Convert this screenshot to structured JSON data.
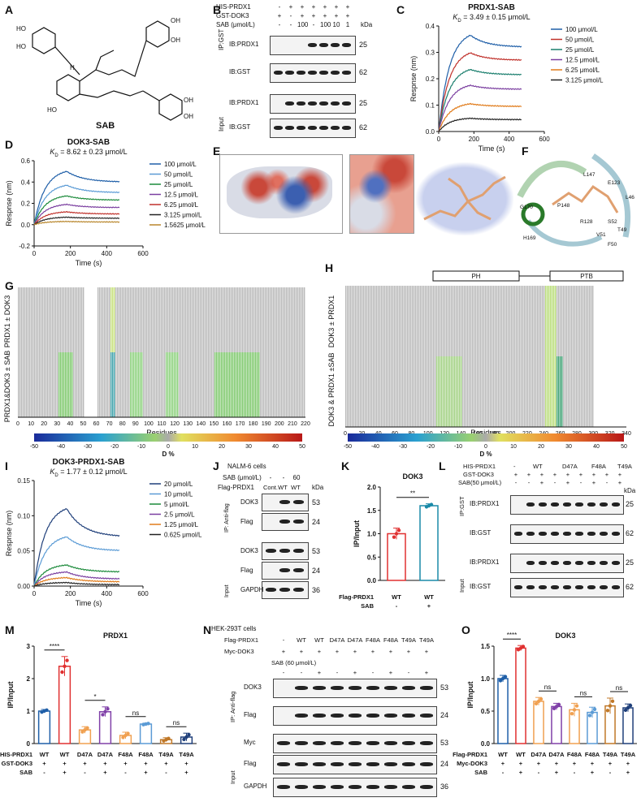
{
  "labels": {
    "A": "A",
    "B": "B",
    "C": "C",
    "D": "D",
    "E": "E",
    "F": "F",
    "G": "G",
    "H": "H",
    "I": "I",
    "J": "J",
    "K": "K",
    "L": "L",
    "M": "M",
    "N": "N",
    "O": "O"
  },
  "panelA": {
    "compound": "SAB",
    "h": "H"
  },
  "panelB": {
    "rows": [
      "HIS-PRDX1",
      "GST-DOK3",
      "SAB (μmol/L)"
    ],
    "signs": [
      [
        "-",
        "+",
        "+",
        "+",
        "+",
        "+",
        "+"
      ],
      [
        "+",
        "-",
        "+",
        "+",
        "+",
        "+",
        "+"
      ],
      [
        "-",
        "-",
        "100",
        "-",
        "100",
        "10",
        "1"
      ]
    ],
    "kda_label": "kDa",
    "blots": [
      {
        "name": "IB:PRDX1",
        "kda": "25"
      },
      {
        "name": "IB:GST",
        "kda": "62"
      },
      {
        "name": "IB:PRDX1",
        "kda": "25"
      },
      {
        "name": "IB:GST",
        "kda": "62"
      }
    ],
    "groups": [
      "IP:GST",
      "Input"
    ]
  },
  "chart_data": [
    {
      "id": "C",
      "type": "line",
      "title": "PRDX1-SAB",
      "kd": "K_D = 3.49 ± 0.15 μmol/L",
      "kd_sym": "K",
      "kd_sub": "D",
      "kd_rest": " = 3.49 ± 0.15 μmol/L",
      "xlabel": "Time (s)",
      "ylabel": "Respnse (nm)",
      "xlim": [
        0,
        600
      ],
      "ylim": [
        0,
        0.4
      ],
      "xticks": [
        "0",
        "200",
        "400",
        "600"
      ],
      "yticks": [
        "0.0",
        "0.1",
        "0.2",
        "0.3",
        "0.4"
      ],
      "series": [
        {
          "name": "100 μmol/L",
          "color": "#1f5fa8",
          "plateau": 0.365,
          "end": 0.32
        },
        {
          "name": "50 μmol/L",
          "color": "#c0312b",
          "plateau": 0.298,
          "end": 0.27
        },
        {
          "name": "25 μmol/L",
          "color": "#1b7f6e",
          "plateau": 0.235,
          "end": 0.215
        },
        {
          "name": "12.5 μmol/L",
          "color": "#7b3fa0",
          "plateau": 0.175,
          "end": 0.16
        },
        {
          "name": "6.25 μmol/L",
          "color": "#e07b1a",
          "plateau": 0.105,
          "end": 0.095
        },
        {
          "name": "3.125 μmol/L",
          "color": "#222222",
          "plateau": 0.05,
          "end": 0.045
        }
      ]
    },
    {
      "id": "D",
      "type": "line",
      "title": "DOK3-SAB",
      "kd": "K_D = 8.62 ± 0.23 μmol/L",
      "kd_sym": "K",
      "kd_sub": "D",
      "kd_rest": " = 8.62 ± 0.23 μmol/L",
      "xlabel": "Time (s)",
      "ylabel": "Respnse (nm)",
      "xlim": [
        0,
        600
      ],
      "ylim": [
        -0.2,
        0.6
      ],
      "xticks": [
        "0",
        "200",
        "400",
        "600"
      ],
      "yticks": [
        "-0.2",
        "0.0",
        "0.2",
        "0.4",
        "0.6"
      ],
      "series": [
        {
          "name": "100 μmol/L",
          "color": "#1f5fa8",
          "plateau": 0.5,
          "end": 0.4
        },
        {
          "name": "50 μmol/L",
          "color": "#5b9bd5",
          "plateau": 0.37,
          "end": 0.3
        },
        {
          "name": "25 μmol/L",
          "color": "#1b8a3a",
          "plateau": 0.27,
          "end": 0.23
        },
        {
          "name": "12.5 μmol/L",
          "color": "#7b3fa0",
          "plateau": 0.19,
          "end": 0.16
        },
        {
          "name": "6.25 μmol/L",
          "color": "#c0312b",
          "plateau": 0.12,
          "end": 0.1
        },
        {
          "name": "3.125 μmol/L",
          "color": "#222222",
          "plateau": 0.07,
          "end": 0.06
        },
        {
          "name": "1.5625 μmol/L",
          "color": "#b8862b",
          "plateau": 0.03,
          "end": 0.025
        }
      ]
    },
    {
      "id": "I",
      "type": "line",
      "title": "DOK3-PRDX1-SAB",
      "kd": "K_D = 1.77 ± 0.12 μmol/L",
      "kd_sym": "K",
      "kd_sub": "D",
      "kd_rest": " = 1.77 ± 0.12 μmol/L",
      "xlabel": "Time (s)",
      "ylabel": "Respnse (nm)",
      "xlim": [
        0,
        600
      ],
      "ylim": [
        0,
        0.15
      ],
      "xticks": [
        "0",
        "200",
        "400",
        "600"
      ],
      "yticks": [
        "0.00",
        "0.05",
        "0.10",
        "0.15"
      ],
      "series": [
        {
          "name": "20 μmol/L",
          "color": "#1f3f7a",
          "plateau": 0.11,
          "end": 0.07
        },
        {
          "name": "10 μmol/L",
          "color": "#5b9bd5",
          "plateau": 0.07,
          "end": 0.05
        },
        {
          "name": "5 μmol/L",
          "color": "#1b8a3a",
          "plateau": 0.03,
          "end": 0.02
        },
        {
          "name": "2.5 μmol/L",
          "color": "#7b3fa0",
          "plateau": 0.02,
          "end": 0.01
        },
        {
          "name": "1.25 μmol/L",
          "color": "#e07b1a",
          "plateau": 0.012,
          "end": 0.006
        },
        {
          "name": "0.625 μmol/L",
          "color": "#222222",
          "plateau": 0.005,
          "end": 0.002
        }
      ]
    },
    {
      "id": "K",
      "type": "bar",
      "title": "DOK3",
      "ylabel": "IP/Input",
      "ylim": [
        0,
        2.0
      ],
      "yticks": [
        "0.0",
        "0.5",
        "1.0",
        "1.5",
        "2.0"
      ],
      "categories": [
        "WT",
        "WT"
      ],
      "values": [
        1.0,
        1.6
      ],
      "errors": [
        0.12,
        0.04
      ],
      "colors": [
        "#e03030",
        "#1a8aa8"
      ],
      "sig": "**",
      "rows": [
        {
          "name": "Flag-PRDX1",
          "cells": [
            "WT",
            "WT"
          ]
        },
        {
          "name": "SAB",
          "cells": [
            "-",
            "+"
          ]
        }
      ]
    },
    {
      "id": "M",
      "type": "bar",
      "title": "PRDX1",
      "ylabel": "IP/Input",
      "ylim": [
        0,
        3
      ],
      "yticks": [
        "0",
        "1",
        "2",
        "3"
      ],
      "categories": [
        "WT",
        "WT",
        "D47A",
        "D47A",
        "F48A",
        "F48A",
        "T49A",
        "T49A"
      ],
      "values": [
        1.0,
        2.38,
        0.42,
        0.98,
        0.25,
        0.6,
        0.12,
        0.2
      ],
      "errors": [
        0.05,
        0.3,
        0.1,
        0.15,
        0.1,
        0.03,
        0.06,
        0.12
      ],
      "colors": [
        "#1f5fa8",
        "#e03030",
        "#f0a050",
        "#8040a8",
        "#f0a050",
        "#5b9bd5",
        "#c07828",
        "#1f3f7a"
      ],
      "sigs": [
        "****",
        "*",
        "ns",
        "ns"
      ],
      "rows": [
        {
          "name": "HIS-PRDX1",
          "cells": [
            "WT",
            "WT",
            "D47A",
            "D47A",
            "F48A",
            "F48A",
            "T49A",
            "T49A"
          ]
        },
        {
          "name": "GST-DOK3",
          "cells": [
            "+",
            "+",
            "+",
            "+",
            "+",
            "+",
            "+",
            "+"
          ]
        },
        {
          "name": "SAB",
          "cells": [
            "-",
            "+",
            "-",
            "+",
            "-",
            "+",
            "-",
            "+"
          ]
        }
      ]
    },
    {
      "id": "O",
      "type": "bar",
      "title": "DOK3",
      "ylabel": "IP/Input",
      "ylim": [
        0,
        1.5
      ],
      "yticks": [
        "0.0",
        "0.5",
        "1.0",
        "1.5"
      ],
      "categories": [
        "WT",
        "WT",
        "D47A",
        "D47A",
        "F48A",
        "F48A",
        "T49A",
        "T49A"
      ],
      "values": [
        1.0,
        1.47,
        0.65,
        0.57,
        0.52,
        0.48,
        0.58,
        0.55
      ],
      "errors": [
        0.05,
        0.04,
        0.06,
        0.05,
        0.1,
        0.08,
        0.12,
        0.06
      ],
      "colors": [
        "#1f5fa8",
        "#e03030",
        "#f0a050",
        "#8040a8",
        "#f0a050",
        "#5b9bd5",
        "#c07828",
        "#1f3f7a"
      ],
      "sigs": [
        "****",
        "ns",
        "ns",
        "ns"
      ],
      "rows": [
        {
          "name": "Flag-PRDX1",
          "cells": [
            "WT",
            "WT",
            "D47A",
            "D47A",
            "F48A",
            "F48A",
            "T49A",
            "T49A"
          ]
        },
        {
          "name": "Myc-DOK3",
          "cells": [
            "+",
            "+",
            "+",
            "+",
            "+",
            "+",
            "+",
            "+"
          ]
        },
        {
          "name": "SAB",
          "cells": [
            "-",
            "+",
            "-",
            "+",
            "-",
            "+",
            "-",
            "+"
          ]
        }
      ]
    }
  ],
  "panelE": {},
  "panelF": {
    "residues": [
      "E123",
      "L147",
      "L46",
      "P148",
      "G170",
      "R128",
      "S52",
      "T49",
      "V51",
      "H169",
      "F50"
    ]
  },
  "panelG": {
    "ylabels": [
      "PRDX1 ± DOK3",
      "PRDX1&DOK3 ± SAB"
    ],
    "xlabel": "Residues",
    "xticks": [
      "0",
      "10",
      "20",
      "30",
      "40",
      "50",
      "60",
      "70",
      "80",
      "90",
      "100",
      "110",
      "120",
      "130",
      "140",
      "150",
      "160",
      "170",
      "180",
      "190",
      "200",
      "210",
      "220"
    ]
  },
  "panelH": {
    "ylabels": [
      "DOK3 ± PRDX1",
      "DOK3 & PRDX1 ±SAB"
    ],
    "xlabel": "Residues",
    "domains": [
      "PH",
      "PTB"
    ],
    "xticks": [
      "0",
      "20",
      "40",
      "60",
      "80",
      "100",
      "120",
      "140",
      "160",
      "180",
      "200",
      "220",
      "240",
      "260",
      "280",
      "300",
      "320",
      "340"
    ]
  },
  "colorbar": {
    "ticks": [
      "-50",
      "-40",
      "-30",
      "-20",
      "-10",
      "0",
      "10",
      "20",
      "30",
      "40",
      "50"
    ],
    "label": "D %"
  },
  "panelJ": {
    "cell": "NALM-6 cells",
    "sab": "SAB (μmol/L)",
    "sab_vals": [
      "-",
      "-",
      "60"
    ],
    "flag": "Flag-PRDX1",
    "flag_vals": [
      "Cont.",
      "WT",
      "WT"
    ],
    "kda_label": "kDa",
    "ip": "IP: Anti-flag",
    "input": "Input",
    "blots": [
      {
        "name": "DOK3",
        "kda": "53"
      },
      {
        "name": "Flag",
        "kda": "24"
      },
      {
        "name": "DOK3",
        "kda": "53"
      },
      {
        "name": "Flag",
        "kda": "24"
      },
      {
        "name": "GAPDH",
        "kda": "36"
      }
    ]
  },
  "panelL": {
    "rows": [
      "HIS-PRDX1",
      "GST-DOK3",
      "SAB(50 μmol/L)"
    ],
    "groups": [
      "-",
      "WT",
      "D47A",
      "F48A",
      "T49A"
    ],
    "gst": [
      "+",
      "+",
      "+",
      "+",
      "+",
      "+",
      "+",
      "+",
      "+"
    ],
    "sab": [
      "-",
      "-",
      "+",
      "-",
      "+",
      "-",
      "+",
      "-",
      "+"
    ],
    "kda_label": "kDa",
    "ip": "IP:GST",
    "input": "Input",
    "blots": [
      {
        "name": "IB:PRDX1",
        "kda": "25"
      },
      {
        "name": "IB:GST",
        "kda": "62"
      },
      {
        "name": "IB:PRDX1",
        "kda": "25"
      },
      {
        "name": "IB:GST",
        "kda": "62"
      }
    ]
  },
  "panelN": {
    "cell": "HEK-293T cells",
    "flag": "Flag-PRDX1",
    "flag_vals": [
      "-",
      "WT",
      "WT",
      "D47A",
      "D47A",
      "F48A",
      "F48A",
      "T49A",
      "T49A"
    ],
    "myc": "Myc-DOK3",
    "myc_vals": [
      "+",
      "+",
      "+",
      "+",
      "+",
      "+",
      "+",
      "+",
      "+"
    ],
    "sab": "SAB (60 μmol/L)",
    "sab_vals": [
      "-",
      "-",
      "+",
      "-",
      "+",
      "-",
      "+",
      "-",
      "+"
    ],
    "ip": "IP: Anti-flag",
    "input": "Input",
    "blots": [
      {
        "name": "DOK3",
        "kda": "53"
      },
      {
        "name": "Flag",
        "kda": "24"
      },
      {
        "name": "Myc",
        "kda": "53"
      },
      {
        "name": "Flag",
        "kda": "24"
      },
      {
        "name": "GAPDH",
        "kda": "36"
      }
    ]
  }
}
